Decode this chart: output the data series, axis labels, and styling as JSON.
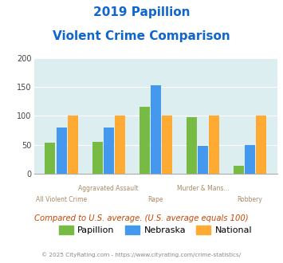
{
  "title_line1": "2019 Papillion",
  "title_line2": "Violent Crime Comparison",
  "categories": [
    "All Violent Crime",
    "Aggravated Assault",
    "Rape",
    "Murder & Mans...",
    "Robbery"
  ],
  "papillion": [
    53,
    55,
    115,
    98,
    13
  ],
  "nebraska": [
    80,
    79,
    152,
    48,
    50
  ],
  "national": [
    100,
    100,
    100,
    100,
    100
  ],
  "color_papillion": "#77bb44",
  "color_nebraska": "#4499ee",
  "color_national": "#ffaa33",
  "ylim": [
    0,
    200
  ],
  "yticks": [
    0,
    50,
    100,
    150,
    200
  ],
  "bg_color": "#ddeef0",
  "title_color": "#1166cc",
  "xlabel_color": "#aa8866",
  "note_text": "Compared to U.S. average. (U.S. average equals 100)",
  "note_color": "#cc4400",
  "footer_text": "© 2025 CityRating.com - https://www.cityrating.com/crime-statistics/",
  "footer_color": "#888888",
  "legend_labels": [
    "Papillion",
    "Nebraska",
    "National"
  ]
}
